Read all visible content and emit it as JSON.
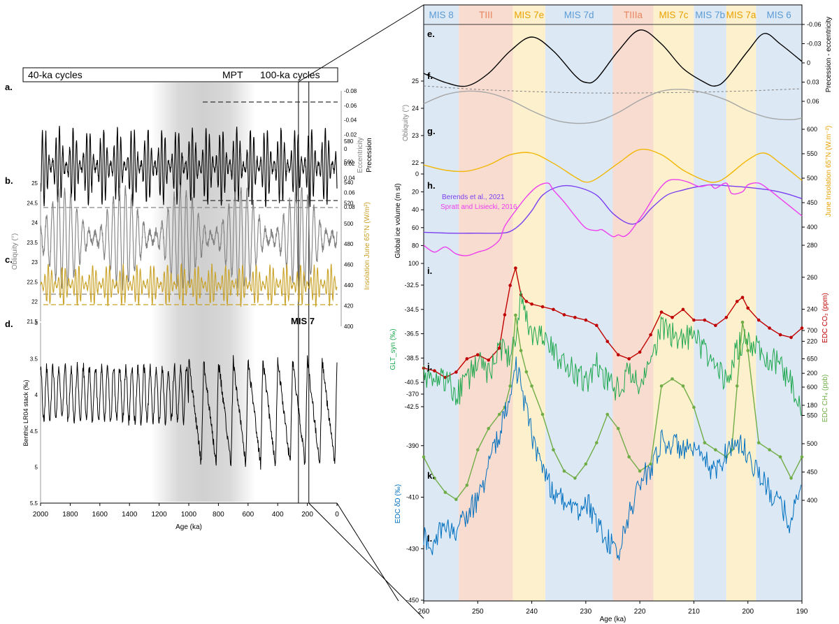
{
  "chart_data": [
    {
      "type": "line",
      "panel": "left",
      "banner": {
        "left": "40-ka cycles",
        "middle": "MPT",
        "right": "100-ka cycles",
        "window_label": "MIS 7"
      },
      "xlabel": "Age (ka)",
      "x_ticks": [
        "2000",
        "1800",
        "1600",
        "1400",
        "1200",
        "1000",
        "800",
        "600",
        "400",
        "200",
        "0"
      ],
      "xlim": [
        2000,
        0
      ],
      "mpt_shading_ka": [
        1250,
        550
      ],
      "window_ka": [
        260,
        190
      ],
      "subpanels": [
        {
          "letter": "a.",
          "series": "Precession / eccentricity",
          "ylabel_a": "Eccentricity",
          "ylabel_b": "Precession",
          "y_ticks": [
            "-0.08",
            "-0.06",
            "-0.04",
            "-0.02",
            "0",
            "0.02",
            "0.04",
            "0.06",
            "0.08"
          ],
          "ylim": [
            -0.08,
            0.08
          ],
          "inverted": true,
          "amplitude_range": [
            -0.055,
            0.055
          ],
          "mean": 0,
          "dominant_period_ka": 23,
          "color": "#000000"
        },
        {
          "letter": "b.",
          "series": "Obliquity",
          "ylabel": "Obliquity (°)",
          "y_ticks": [
            "25",
            "24.5",
            "24",
            "23.5",
            "23",
            "22.5",
            "22",
            "21.5"
          ],
          "ylim": [
            21.5,
            25
          ],
          "inverted": false,
          "amplitude_range": [
            22.3,
            24.5
          ],
          "mean": 23.4,
          "dominant_period_ka": 41,
          "color": "#808080"
        },
        {
          "letter": "c.",
          "series": "June 65°N insolation",
          "ylabel": "Insolation June 65°N (W/m²)",
          "y_ticks": [
            "580",
            "560",
            "540",
            "520",
            "500",
            "480",
            "460",
            "440",
            "420",
            "400"
          ],
          "ylim": [
            400,
            580
          ],
          "inverted": false,
          "amplitude_range": [
            435,
            560
          ],
          "mean": 495,
          "dominant_period_ka": 23,
          "color": "#C9A227"
        },
        {
          "letter": "d.",
          "series": "Benthic LR04 stack",
          "ylabel": "Benthic LR04 stack (‰)",
          "y_ticks": [
            "3",
            "3.5",
            "4",
            "4.5",
            "5",
            "5.5"
          ],
          "ylim": [
            3,
            5.5
          ],
          "inverted": true,
          "amplitude_range": [
            3.2,
            5.1
          ],
          "mean": 4.0,
          "color": "#000000"
        }
      ]
    },
    {
      "type": "line",
      "panel": "right",
      "xlabel": "Age (ka)",
      "x_ticks": [
        "260",
        "250",
        "240",
        "230",
        "220",
        "210",
        "200",
        "190"
      ],
      "xlim": [
        260,
        190
      ],
      "stages": [
        {
          "label": "MIS 8",
          "start": 260,
          "end": 253.5,
          "fill": "#DCE8F4",
          "text_color": "#5B9BD5"
        },
        {
          "label": "TIII",
          "start": 253.5,
          "end": 243.5,
          "fill": "#F9DCD0",
          "text_color": "#E6855E"
        },
        {
          "label": "MIS 7e",
          "start": 243.5,
          "end": 237.5,
          "fill": "#FDF0CC",
          "text_color": "#E8A200"
        },
        {
          "label": "MIS 7d",
          "start": 237.5,
          "end": 225,
          "fill": "#DCE8F4",
          "text_color": "#5B9BD5"
        },
        {
          "label": "TIIIa",
          "start": 225,
          "end": 217.5,
          "fill": "#F9DCD0",
          "text_color": "#E6855E"
        },
        {
          "label": "MIS 7c",
          "start": 217.5,
          "end": 210,
          "fill": "#FDF0CC",
          "text_color": "#E8A200"
        },
        {
          "label": "MIS 7b",
          "start": 210,
          "end": 204,
          "fill": "#DCE8F4",
          "text_color": "#5B9BD5"
        },
        {
          "label": "MIS 7a",
          "start": 204,
          "end": 198.5,
          "fill": "#FDF0CC",
          "text_color": "#E8A200"
        },
        {
          "label": "MIS 6",
          "start": 198.5,
          "end": 190,
          "fill": "#DCE8F4",
          "text_color": "#5B9BD5"
        }
      ],
      "subpanels": [
        {
          "letter": "e.",
          "name": "Precession",
          "side": "right",
          "axis_id": "prec",
          "axis_label": "Precession - eccentricity",
          "y_ticks": [
            "-0.06",
            "-0.03",
            "0",
            "0.03",
            "0.06"
          ],
          "ylim": [
            -0.065,
            0.065
          ],
          "inverted": true,
          "color": "#000000",
          "x": [
            260,
            256,
            252,
            248,
            244,
            240,
            236,
            232,
            230,
            228,
            224,
            220,
            216,
            212,
            208,
            206,
            204,
            200,
            197,
            194,
            190
          ],
          "y": [
            0.012,
            0.025,
            0.03,
            0.012,
            -0.02,
            -0.04,
            -0.02,
            0.015,
            0.025,
            0.02,
            -0.02,
            -0.05,
            -0.03,
            0.005,
            0.025,
            0.03,
            0.02,
            -0.02,
            -0.045,
            -0.03,
            -0.005
          ]
        },
        {
          "name": "Eccentricity",
          "side": "right",
          "axis_id": "prec",
          "dashed": true,
          "color": "#7F7F7F",
          "x": [
            260,
            250,
            240,
            230,
            220,
            210,
            200,
            190
          ],
          "y": [
            0.03,
            0.035,
            0.038,
            0.04,
            0.04,
            0.039,
            0.037,
            0.034
          ]
        },
        {
          "letter": "f.",
          "name": "Obliquity",
          "side": "left",
          "axis_id": "obl",
          "axis_label": "Obliquity (°)",
          "y_ticks": [
            "25",
            "24",
            "23",
            "22"
          ],
          "ylim": [
            21.6,
            25.2
          ],
          "inverted": false,
          "color": "#A6A6A6",
          "x": [
            260,
            256,
            252,
            248,
            244,
            240,
            236,
            232,
            228,
            224,
            220,
            216,
            212,
            208,
            204,
            200,
            196,
            192,
            190
          ],
          "y": [
            23.7,
            24.2,
            24.4,
            24.3,
            23.9,
            23.3,
            22.8,
            22.6,
            22.7,
            23.2,
            23.9,
            24.4,
            24.5,
            24.3,
            23.9,
            23.3,
            22.9,
            22.8,
            22.9
          ]
        },
        {
          "letter": "g.",
          "name": "June insolation 65°N",
          "side": "right",
          "axis_id": "ins",
          "axis_label": "June Insolation 65°N (W.m⁻²)",
          "y_ticks": [
            "600",
            "550",
            "500",
            "450",
            "400"
          ],
          "ylim": [
            395,
            640
          ],
          "inverted": false,
          "color": "#F2B705",
          "x": [
            260,
            256,
            252,
            248,
            244,
            240,
            236,
            232,
            230,
            228,
            224,
            220,
            216,
            212,
            208,
            206,
            204,
            200,
            197,
            194,
            190
          ],
          "y": [
            505,
            490,
            487,
            505,
            535,
            540,
            510,
            470,
            455,
            465,
            510,
            550,
            535,
            490,
            460,
            455,
            470,
            520,
            540,
            510,
            460
          ]
        },
        {
          "letter": "h.",
          "name": "Berends et al., 2021",
          "side": "left",
          "axis_id": "ice",
          "axis_label": "Global ice volume (m sl)",
          "y_ticks": [
            "0",
            "20",
            "40",
            "60",
            "80",
            "100"
          ],
          "ylim": [
            -5,
            110
          ],
          "inverted": true,
          "color": "#7B3FF2",
          "x": [
            260,
            255,
            250,
            246,
            244,
            242,
            240,
            238,
            235,
            232,
            228,
            225,
            222,
            220,
            218,
            215,
            212,
            210,
            207,
            204,
            200,
            196,
            193,
            190
          ],
          "y": [
            65,
            66,
            66,
            66,
            64,
            55,
            40,
            22,
            12,
            12,
            22,
            43,
            55,
            52,
            38,
            22,
            16,
            13,
            10,
            11,
            13,
            16,
            20,
            26
          ]
        },
        {
          "name": "Spratt and Lisiecki, 2016",
          "side": "left",
          "axis_id": "ice",
          "color": "#EE3FEE",
          "x": [
            260,
            258,
            256,
            254,
            252,
            250,
            248,
            246,
            245,
            243,
            241,
            239,
            237,
            236,
            234,
            232,
            230,
            228,
            227,
            225,
            224,
            223,
            222,
            221,
            219,
            217,
            215,
            213,
            211,
            209,
            207,
            206,
            204,
            203,
            201,
            200,
            198,
            196,
            194,
            192,
            190
          ],
          "y": [
            80,
            88,
            82,
            90,
            92,
            88,
            84,
            74,
            58,
            40,
            24,
            12,
            8,
            16,
            30,
            46,
            60,
            63,
            62,
            70,
            68,
            70,
            66,
            58,
            40,
            20,
            6,
            4,
            7,
            12,
            10,
            14,
            8,
            20,
            18,
            10,
            8,
            16,
            26,
            36,
            46
          ]
        },
        {
          "letter": "i.",
          "name": "EDC CO2",
          "side": "right",
          "axis_id": "co2",
          "axis_label": "EDC CO₂ (ppm)",
          "y_ticks": [
            "280",
            "260",
            "240",
            "220",
            "200",
            "180"
          ],
          "ylim": [
            180,
            290
          ],
          "inverted": false,
          "color": "#C00000",
          "markers": true,
          "x": [
            260,
            258,
            256,
            254,
            252,
            250,
            248,
            246,
            245,
            244,
            243,
            242,
            241,
            240,
            238,
            236,
            234,
            232,
            230,
            228,
            226,
            224,
            222,
            220,
            218,
            216,
            214,
            212,
            210,
            208,
            206,
            204,
            202,
            201,
            200,
            198,
            196,
            194,
            192,
            190
          ],
          "y": [
            200,
            198,
            193,
            197,
            207,
            210,
            206,
            215,
            240,
            262,
            275,
            255,
            250,
            248,
            246,
            244,
            240,
            238,
            236,
            232,
            220,
            210,
            207,
            212,
            225,
            242,
            238,
            244,
            236,
            236,
            232,
            238,
            250,
            253,
            245,
            236,
            230,
            225,
            223,
            230
          ]
        },
        {
          "letter": "j.",
          "name": "GLT_syn",
          "side": "left",
          "axis_id": "glt",
          "axis_label": "GLT_syn (‰)",
          "y_ticks": [
            "-32.5",
            "-34.5",
            "-36.5",
            "-38.5",
            "-40.5",
            "-42.5"
          ],
          "ylim": [
            -43.5,
            -31.5
          ],
          "inverted": false,
          "color": "#1FA84F",
          "x": [
            260,
            258,
            256,
            254,
            252,
            250,
            248,
            246,
            244,
            243,
            242,
            241,
            240,
            238,
            236,
            234,
            232,
            230,
            228,
            226,
            224,
            222,
            220,
            218,
            216,
            214,
            212,
            210,
            208,
            206,
            204,
            202,
            200,
            198,
            196,
            194,
            192,
            190
          ],
          "y": [
            -39,
            -40,
            -39.5,
            -41,
            -40,
            -38,
            -39.5,
            -37,
            -38,
            -36,
            -33,
            -35,
            -36.5,
            -36,
            -37.5,
            -38.5,
            -39,
            -40,
            -38.5,
            -40,
            -40.5,
            -39,
            -40.5,
            -38,
            -35.5,
            -36,
            -36.5,
            -36,
            -37.5,
            -38.5,
            -40,
            -37,
            -36.5,
            -37,
            -38,
            -38.5,
            -40,
            -42
          ]
        },
        {
          "letter": "k.",
          "name": "EDC CH4",
          "side": "right",
          "axis_id": "ch4",
          "axis_label": "EDC CH₄ (ppb)",
          "y_ticks": [
            "700",
            "650",
            "600",
            "550",
            "500",
            "450",
            "400"
          ],
          "ylim": [
            380,
            730
          ],
          "inverted": false,
          "color": "#70AD47",
          "markers": true,
          "x": [
            260,
            258,
            256,
            254,
            252,
            250,
            248,
            246,
            245,
            244,
            243,
            242,
            241,
            240,
            238,
            236,
            234,
            232,
            230,
            228,
            226,
            224,
            222,
            220,
            218,
            216,
            214,
            212,
            210,
            208,
            206,
            204,
            203,
            202,
            201,
            200,
            198,
            196,
            194,
            192,
            190
          ],
          "y": [
            460,
            430,
            410,
            400,
            420,
            470,
            500,
            520,
            530,
            560,
            660,
            610,
            580,
            560,
            520,
            470,
            440,
            430,
            450,
            480,
            520,
            500,
            460,
            440,
            450,
            560,
            570,
            560,
            530,
            480,
            470,
            460,
            470,
            560,
            650,
            610,
            480,
            470,
            460,
            430,
            460
          ]
        },
        {
          "letter": "l.",
          "name": "EDC δD",
          "side": "left",
          "axis_id": "dD",
          "axis_label": "EDC δD (‰)",
          "y_ticks": [
            "-370",
            "-390",
            "-410",
            "-430",
            "-450"
          ],
          "ylim": [
            -452,
            -360
          ],
          "inverted": false,
          "color": "#0070C0",
          "x": [
            260,
            258,
            256,
            254,
            252,
            250,
            248,
            246,
            244,
            243,
            242,
            240,
            238,
            236,
            234,
            232,
            230,
            228,
            226,
            224,
            222,
            220,
            218,
            216,
            214,
            212,
            210,
            208,
            206,
            204,
            202,
            200,
            198,
            196,
            194,
            192,
            190
          ],
          "y": [
            -432,
            -434,
            -428,
            -430,
            -425,
            -420,
            -410,
            -400,
            -385,
            -378,
            -385,
            -400,
            -410,
            -418,
            -420,
            -425,
            -420,
            -428,
            -433,
            -438,
            -425,
            -415,
            -410,
            -402,
            -403,
            -404,
            -406,
            -408,
            -412,
            -405,
            -402,
            -406,
            -412,
            -418,
            -422,
            -428,
            -412
          ]
        }
      ]
    }
  ]
}
